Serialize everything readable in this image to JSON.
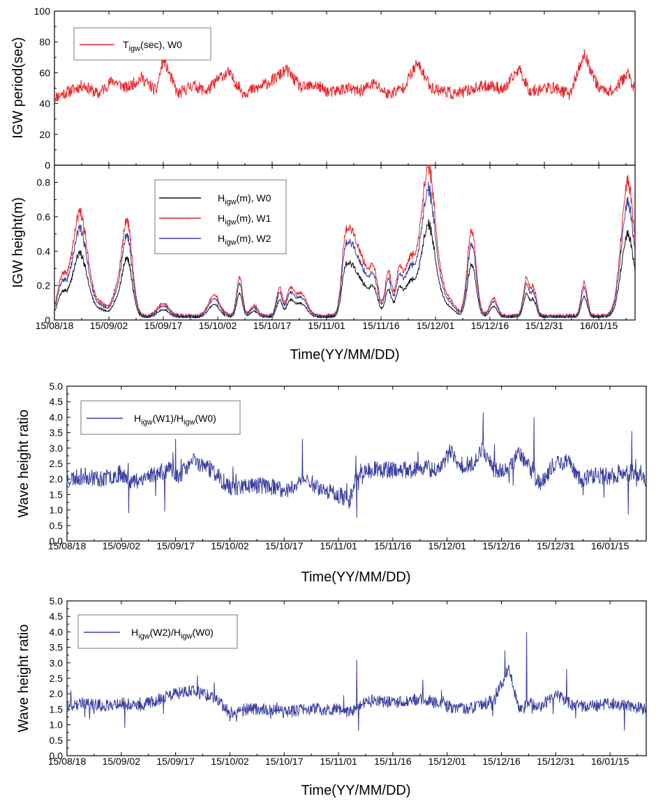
{
  "colors": {
    "red": "#e8262b",
    "black": "#111111",
    "blue": "#3a3fa0",
    "frame": "#000000"
  },
  "chart_data": [
    {
      "type": "line",
      "panel": "top",
      "ylabel": "IGW period(sec)",
      "ylim": [
        0,
        100
      ],
      "yticks": [
        "0",
        "20",
        "40",
        "60",
        "80",
        "100"
      ],
      "x_range_days": [
        0,
        160
      ],
      "legend": {
        "placement": "top-left",
        "entries": [
          {
            "main": "T",
            "sub": "igw",
            "rest": "(sec), W0",
            "color_key": "red"
          }
        ]
      },
      "series": [
        {
          "name": "Tigw(sec), W0",
          "color_key": "red",
          "x": [
            0,
            4,
            8,
            12,
            16,
            20,
            24,
            28,
            30,
            34,
            38,
            42,
            46,
            48,
            52,
            56,
            60,
            64,
            68,
            72,
            76,
            80,
            84,
            88,
            92,
            96,
            100,
            104,
            108,
            110,
            112,
            116,
            120,
            124,
            128,
            131,
            135,
            138,
            142,
            146,
            150,
            154,
            158,
            160
          ],
          "y": [
            44,
            48,
            52,
            46,
            55,
            50,
            57,
            48,
            69,
            46,
            52,
            48,
            58,
            60,
            47,
            50,
            55,
            62,
            50,
            52,
            47,
            50,
            48,
            53,
            46,
            50,
            66,
            50,
            48,
            46,
            47,
            50,
            52,
            49,
            63,
            48,
            50,
            50,
            46,
            72,
            50,
            48,
            60,
            48
          ],
          "noise": 4
        }
      ]
    },
    {
      "type": "line",
      "panel": "height",
      "ylabel": "IGW height(m)",
      "xlabel": "Time(YY/MM/DD)",
      "ylim": [
        0,
        0.9
      ],
      "yticks": [
        "0",
        "0.2",
        "0.4",
        "0.6",
        "0.8"
      ],
      "x_range_days": [
        0,
        160
      ],
      "categories": [
        "15/08/18",
        "15/09/02",
        "15/09/17",
        "15/10/02",
        "15/10/17",
        "15/11/01",
        "15/11/16",
        "15/12/01",
        "15/12/16",
        "15/12/31",
        "16/01/15"
      ],
      "legend": {
        "placement": "top-left",
        "entries": [
          {
            "main": "H",
            "sub": "igw",
            "rest": "(m), W0",
            "color_key": "black"
          },
          {
            "main": "H",
            "sub": "igw",
            "rest": "(m), W1",
            "color_key": "red"
          },
          {
            "main": "H",
            "sub": "igw",
            "rest": "(m), W2",
            "color_key": "blue"
          }
        ]
      },
      "series": [
        {
          "name": "Higw(m), W0",
          "color_key": "black",
          "scale": 0.62
        },
        {
          "name": "Higw(m), W1",
          "color_key": "red",
          "scale": 1.0
        },
        {
          "name": "Higw(m), W2",
          "color_key": "blue",
          "scale": 0.85
        }
      ],
      "baseline": 0.02,
      "peaks": [
        {
          "day": 2,
          "height": 0.19,
          "width": 1.2
        },
        {
          "day": 7,
          "height": 0.59,
          "width": 2.2
        },
        {
          "day": 13,
          "height": 0.06,
          "width": 1.5
        },
        {
          "day": 17,
          "height": 0.12,
          "width": 1.2
        },
        {
          "day": 20,
          "height": 0.55,
          "width": 1.4
        },
        {
          "day": 30,
          "height": 0.07,
          "width": 1.5
        },
        {
          "day": 44,
          "height": 0.12,
          "width": 1.5
        },
        {
          "day": 51,
          "height": 0.22,
          "width": 0.8
        },
        {
          "day": 55,
          "height": 0.06,
          "width": 1.0
        },
        {
          "day": 62,
          "height": 0.16,
          "width": 0.8
        },
        {
          "day": 65,
          "height": 0.15,
          "width": 1.0
        },
        {
          "day": 68,
          "height": 0.13,
          "width": 1.5
        },
        {
          "day": 80,
          "height": 0.28,
          "width": 1.0
        },
        {
          "day": 82,
          "height": 0.42,
          "width": 1.5
        },
        {
          "day": 85,
          "height": 0.26,
          "width": 1.5
        },
        {
          "day": 88,
          "height": 0.25,
          "width": 1.2
        },
        {
          "day": 92,
          "height": 0.25,
          "width": 0.9
        },
        {
          "day": 95,
          "height": 0.24,
          "width": 1.0
        },
        {
          "day": 98,
          "height": 0.3,
          "width": 1.5
        },
        {
          "day": 103,
          "height": 0.86,
          "width": 2.0
        },
        {
          "day": 108,
          "height": 0.1,
          "width": 2.0
        },
        {
          "day": 115,
          "height": 0.5,
          "width": 1.2
        },
        {
          "day": 121,
          "height": 0.1,
          "width": 1.0
        },
        {
          "day": 130,
          "height": 0.2,
          "width": 0.8
        },
        {
          "day": 132,
          "height": 0.16,
          "width": 0.8
        },
        {
          "day": 146,
          "height": 0.19,
          "width": 0.8
        },
        {
          "day": 158,
          "height": 0.78,
          "width": 1.8
        }
      ]
    },
    {
      "type": "line",
      "panel": "ratio1",
      "ylabel": "Wave height ratio",
      "xlabel": "Time(YY/MM/DD)",
      "ylim": [
        0,
        5
      ],
      "yticks": [
        "0.0",
        "0.5",
        "1.0",
        "1.5",
        "2.0",
        "2.5",
        "3.0",
        "3.5",
        "4.0",
        "4.5",
        "5.0"
      ],
      "x_range_days": [
        0,
        160
      ],
      "categories": [
        "15/08/18",
        "15/09/02",
        "15/09/17",
        "15/10/02",
        "15/10/17",
        "15/11/01",
        "15/11/16",
        "15/12/01",
        "15/12/16",
        "15/12/31",
        "16/01/15"
      ],
      "legend": {
        "placement": "top-left",
        "entries": [
          {
            "main": "H",
            "sub": "igw",
            "rest": "(W1)/H",
            "sub2": "igw",
            "rest2": "(W0)",
            "color_key": "blue"
          }
        ]
      },
      "series": [
        {
          "name": "Higw(W1)/Higw(W0)",
          "color_key": "blue",
          "x": [
            0,
            5,
            10,
            15,
            18,
            22,
            25,
            28,
            31,
            35,
            40,
            45,
            50,
            55,
            60,
            63,
            66,
            70,
            75,
            78,
            80,
            85,
            90,
            95,
            98,
            101,
            104,
            106,
            108,
            112,
            115,
            118,
            122,
            125,
            128,
            131,
            134,
            138,
            142,
            146,
            150,
            154,
            158,
            160
          ],
          "y": [
            2.0,
            2.1,
            2.0,
            2.2,
            1.9,
            2.1,
            2.2,
            2.3,
            2.1,
            2.6,
            2.3,
            1.7,
            1.8,
            1.8,
            1.6,
            1.8,
            2.0,
            1.7,
            1.5,
            1.3,
            2.2,
            2.3,
            2.3,
            2.3,
            2.4,
            2.3,
            2.5,
            2.9,
            2.4,
            2.5,
            3.0,
            2.3,
            2.3,
            2.9,
            2.3,
            1.8,
            2.4,
            2.6,
            2.0,
            2.1,
            2.1,
            2.2,
            2.2,
            2.0
          ],
          "noise": 0.28,
          "spikes": [
            {
              "day": 17,
              "value": 0.9
            },
            {
              "day": 27,
              "value": 0.95
            },
            {
              "day": 30,
              "value": 3.3
            },
            {
              "day": 65,
              "value": 3.3
            },
            {
              "day": 80,
              "value": 0.75
            },
            {
              "day": 115,
              "value": 4.15
            },
            {
              "day": 129,
              "value": 4.0
            },
            {
              "day": 155,
              "value": 0.85
            },
            {
              "day": 156,
              "value": 3.55
            }
          ]
        }
      ]
    },
    {
      "type": "line",
      "panel": "ratio2",
      "ylabel": "Wave height ratio",
      "xlabel": "Time(YY/MM/DD)",
      "ylim": [
        0,
        5
      ],
      "yticks": [
        "0.0",
        "0.5",
        "1.0",
        "1.5",
        "2.0",
        "2.5",
        "3.0",
        "3.5",
        "4.0",
        "4.5",
        "5.0"
      ],
      "x_range_days": [
        0,
        160
      ],
      "categories": [
        "15/08/18",
        "15/09/02",
        "15/09/17",
        "15/10/02",
        "15/10/17",
        "15/11/01",
        "15/11/16",
        "15/12/01",
        "15/12/16",
        "15/12/31",
        "16/01/15"
      ],
      "legend": {
        "placement": "top-left",
        "entries": [
          {
            "main": "H",
            "sub": "igw",
            "rest": "(W2)/H",
            "sub2": "igw",
            "rest2": "(W0)",
            "color_key": "blue"
          }
        ]
      },
      "series": [
        {
          "name": "Higw(W2)/Higw(W0)",
          "color_key": "blue",
          "x": [
            0,
            5,
            10,
            15,
            20,
            25,
            30,
            35,
            40,
            45,
            50,
            55,
            60,
            65,
            70,
            75,
            78,
            80,
            85,
            90,
            95,
            100,
            105,
            110,
            114,
            118,
            122,
            125,
            128,
            131,
            135,
            140,
            146,
            150,
            155,
            160
          ],
          "y": [
            1.6,
            1.7,
            1.6,
            1.7,
            1.6,
            1.8,
            2.0,
            2.1,
            1.9,
            1.4,
            1.5,
            1.5,
            1.4,
            1.5,
            1.5,
            1.5,
            1.4,
            1.6,
            1.8,
            1.7,
            1.8,
            1.8,
            1.6,
            1.5,
            1.6,
            1.8,
            2.8,
            1.5,
            1.7,
            1.6,
            2.0,
            1.6,
            1.6,
            1.7,
            1.6,
            1.5
          ],
          "noise": 0.2,
          "spikes": [
            {
              "day": 16,
              "value": 0.9
            },
            {
              "day": 36,
              "value": 2.6
            },
            {
              "day": 80,
              "value": 3.1
            },
            {
              "day": 80.5,
              "value": 0.8
            },
            {
              "day": 121,
              "value": 3.4
            },
            {
              "day": 127,
              "value": 4.0
            },
            {
              "day": 138,
              "value": 2.8
            },
            {
              "day": 154,
              "value": 0.8
            }
          ]
        }
      ]
    }
  ]
}
